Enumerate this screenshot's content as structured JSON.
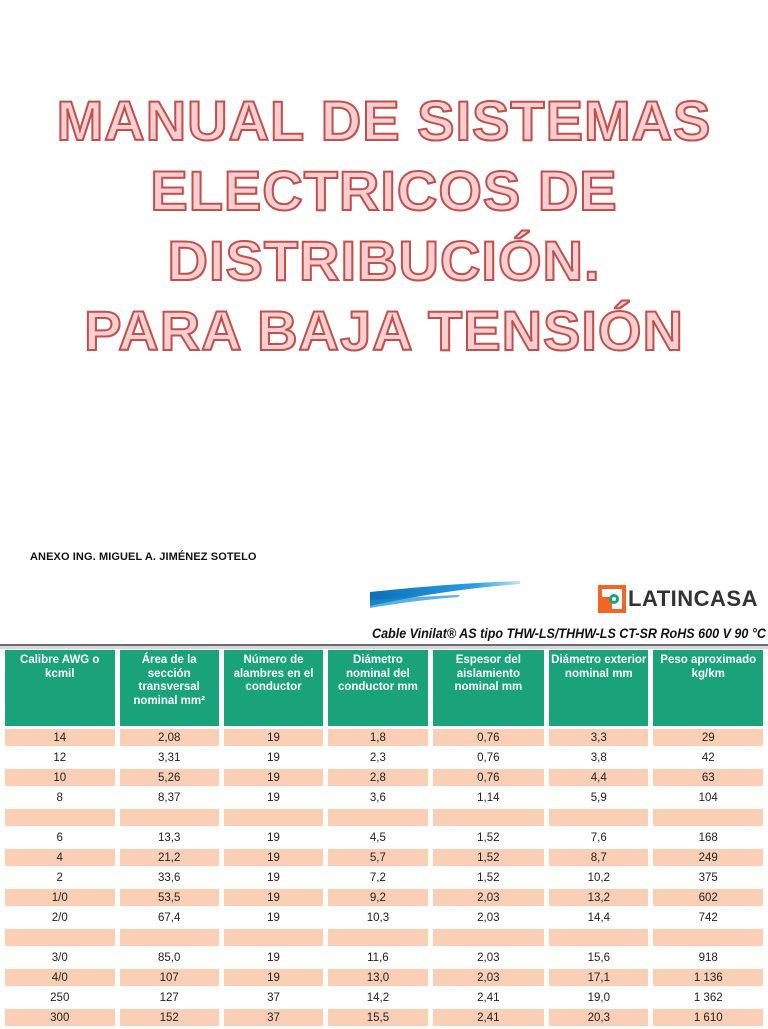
{
  "title": {
    "lines": [
      "MANUAL DE SISTEMAS",
      "ELECTRICOS DE",
      "DISTRIBUCIÓN.",
      "PARA BAJA TENSIÓN"
    ]
  },
  "annex": "ANEXO ING. MIGUEL A. JIMÉNEZ SOTELO",
  "brand": {
    "name": "LATINCASA",
    "logo_icon": "latincasa-logo-icon",
    "accent": "#1aa27a",
    "logo_orange": "#f26522",
    "swoosh_blue": "#1a8fd0"
  },
  "cable_heading": "Cable Vinilat® AS tipo THW-LS/THHW-LS CT-SR RoHS 600 V 90 °C",
  "table": {
    "headers": [
      "Calibre AWG o kcmil",
      "Área de la sección transversal nominal mm²",
      "Número de alambres en el conductor",
      "Diámetro nominal del conductor mm",
      "Espesor del aislamiento nominal mm",
      "Diámetro exterior nominal mm",
      "Peso aproximado kg/km"
    ],
    "rows": [
      [
        "14",
        "2,08",
        "19",
        "1,8",
        "0,76",
        "3,3",
        "29"
      ],
      [
        "12",
        "3,31",
        "19",
        "2,3",
        "0,76",
        "3,8",
        "42"
      ],
      [
        "10",
        "5,26",
        "19",
        "2,8",
        "0,76",
        "4,4",
        "63"
      ],
      [
        "8",
        "8,37",
        "19",
        "3,6",
        "1,14",
        "5,9",
        "104"
      ],
      [
        "",
        "",
        "",
        "",
        "",
        "",
        ""
      ],
      [
        "6",
        "13,3",
        "19",
        "4,5",
        "1,52",
        "7,6",
        "168"
      ],
      [
        "4",
        "21,2",
        "19",
        "5,7",
        "1,52",
        "8,7",
        "249"
      ],
      [
        "2",
        "33,6",
        "19",
        "7,2",
        "1,52",
        "10,2",
        "375"
      ],
      [
        "1/0",
        "53,5",
        "19",
        "9,2",
        "2,03",
        "13,2",
        "602"
      ],
      [
        "2/0",
        "67,4",
        "19",
        "10,3",
        "2,03",
        "14,4",
        "742"
      ],
      [
        "",
        "",
        "",
        "",
        "",
        "",
        ""
      ],
      [
        "3/0",
        "85,0",
        "19",
        "11,6",
        "2,03",
        "15,6",
        "918"
      ],
      [
        "4/0",
        "107",
        "19",
        "13,0",
        "2,03",
        "17,1",
        "1 136"
      ],
      [
        "250",
        "127",
        "37",
        "14,2",
        "2,41",
        "19,0",
        "1 362"
      ],
      [
        "300",
        "152",
        "37",
        "15,5",
        "2,41",
        "20,3",
        "1 610"
      ]
    ]
  }
}
